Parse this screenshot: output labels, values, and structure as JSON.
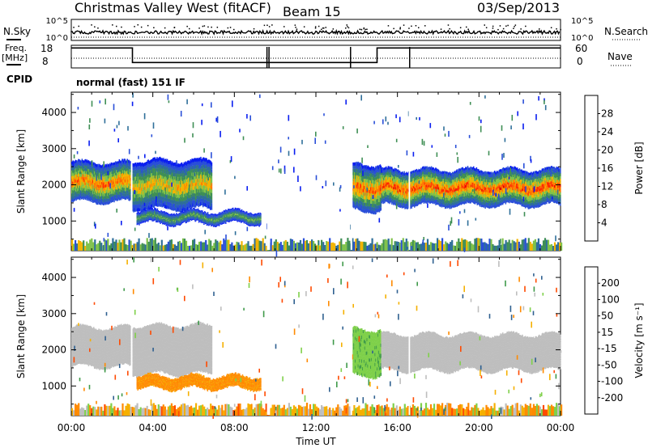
{
  "header": {
    "title": "Christmas Valley West (fitACF)",
    "beam": "Beam 15",
    "date": "03/Sep/2013"
  },
  "strip_labels": {
    "nsky": "N.Sky",
    "freq_line1": "Freq.",
    "freq_line2": "[MHz]",
    "cpid": "CPID",
    "nsearch": "N.Search",
    "nave": "Nave",
    "nsky_top": "10^5",
    "nsky_bottom": "10^0",
    "freq_top": "18",
    "freq_bottom": "8",
    "nsearch_top": "10^5",
    "nsearch_bottom": "10^0",
    "nave_top": "60",
    "nave_bottom": "0",
    "cpid_text": "normal (fast) 151 IF"
  },
  "colors": {
    "power_scale": [
      "#0a1ef0",
      "#2a4fd8",
      "#2f6f9a",
      "#3f8f55",
      "#7fc24a",
      "#f2b400",
      "#ff7a00",
      "#ff2a00",
      "#e00000"
    ],
    "velocity_scale": [
      "#e00000",
      "#ff4a00",
      "#ff8a00",
      "#f5b000",
      "#bebebe",
      "#bebebe",
      "#7fd04a",
      "#3f9a4a",
      "#2f6090",
      "#1a2fb8"
    ]
  },
  "chart_data": [
    {
      "type": "heatmap",
      "panel": "power",
      "ylabel": "Slant Range [km]",
      "colorbar_label": "Power [dB]",
      "colorbar_ticks": [
        "4",
        "8",
        "12",
        "16",
        "20",
        "24",
        "28"
      ],
      "ylim": [
        180,
        4560
      ],
      "y_ticks": [
        "1000",
        "2000",
        "3000",
        "4000"
      ],
      "xlim": [
        0,
        24
      ],
      "echo_regions": [
        {
          "t_start": 0.0,
          "t_end": 2.9,
          "range_lo": 1500,
          "range_hi": 2650,
          "peak": 26
        },
        {
          "t_start": 3.0,
          "t_end": 6.9,
          "range_lo": 1300,
          "range_hi": 2700,
          "peak": 22
        },
        {
          "t_start": 3.2,
          "t_end": 9.3,
          "range_lo": 900,
          "range_hi": 1300,
          "peak": 16
        },
        {
          "t_start": 13.8,
          "t_end": 15.2,
          "range_lo": 1250,
          "range_hi": 2600,
          "peak": 26
        },
        {
          "t_start": 15.2,
          "t_end": 24.0,
          "range_lo": 1400,
          "range_hi": 2450,
          "peak": 28
        }
      ]
    },
    {
      "type": "heatmap",
      "panel": "velocity",
      "ylabel": "Slant Range [km]",
      "colorbar_label": "Velocity [m s⁻¹]",
      "colorbar_ticks": [
        "200",
        "100",
        "50",
        "15",
        "-15",
        "-50",
        "-100",
        "-200"
      ],
      "ylim": [
        180,
        4560
      ],
      "y_ticks": [
        "1000",
        "2000",
        "3000",
        "4000"
      ],
      "xlabel": "Time UT",
      "x_ticks": [
        "00:00",
        "04:00",
        "08:00",
        "12:00",
        "16:00",
        "20:00",
        "00:00"
      ],
      "xlim": [
        0,
        24
      ],
      "echo_regions": [
        {
          "t_start": 0.0,
          "t_end": 2.9,
          "range_lo": 1500,
          "range_hi": 2650,
          "velocity": 0
        },
        {
          "t_start": 3.0,
          "t_end": 6.9,
          "range_lo": 1300,
          "range_hi": 2700,
          "velocity": 0
        },
        {
          "t_start": 3.2,
          "t_end": 9.3,
          "range_lo": 900,
          "range_hi": 1300,
          "velocity": -60
        },
        {
          "t_start": 13.8,
          "t_end": 15.2,
          "range_lo": 1250,
          "range_hi": 2600,
          "velocity": 40
        },
        {
          "t_start": 15.2,
          "t_end": 24.0,
          "range_lo": 1400,
          "range_hi": 2450,
          "velocity": 0
        }
      ]
    }
  ]
}
